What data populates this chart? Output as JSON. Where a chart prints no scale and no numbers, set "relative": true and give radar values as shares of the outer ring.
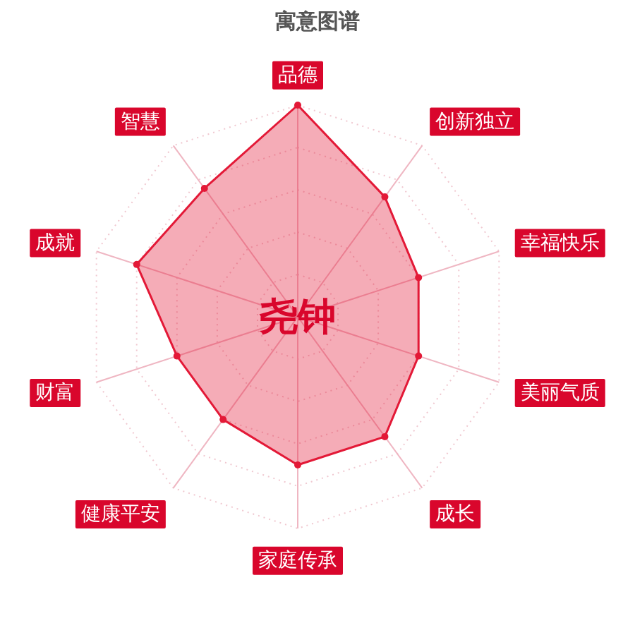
{
  "chart_data": {
    "type": "radar",
    "title": "寓意图谱",
    "categories": [
      "品德",
      "创新独立",
      "幸福快乐",
      "美丽气质",
      "成长",
      "家庭传承",
      "健康平安",
      "财富",
      "成就",
      "智慧"
    ],
    "relative": true,
    "grid": true,
    "marker": "circle",
    "series": [
      {
        "color": "#e31937",
        "values": [
          1,
          0.7,
          0.6,
          0.6,
          0.7,
          0.7,
          0.6,
          0.6,
          0.8,
          0.75
        ]
      }
    ],
    "annotations": [
      "尧钟"
    ]
  }
}
